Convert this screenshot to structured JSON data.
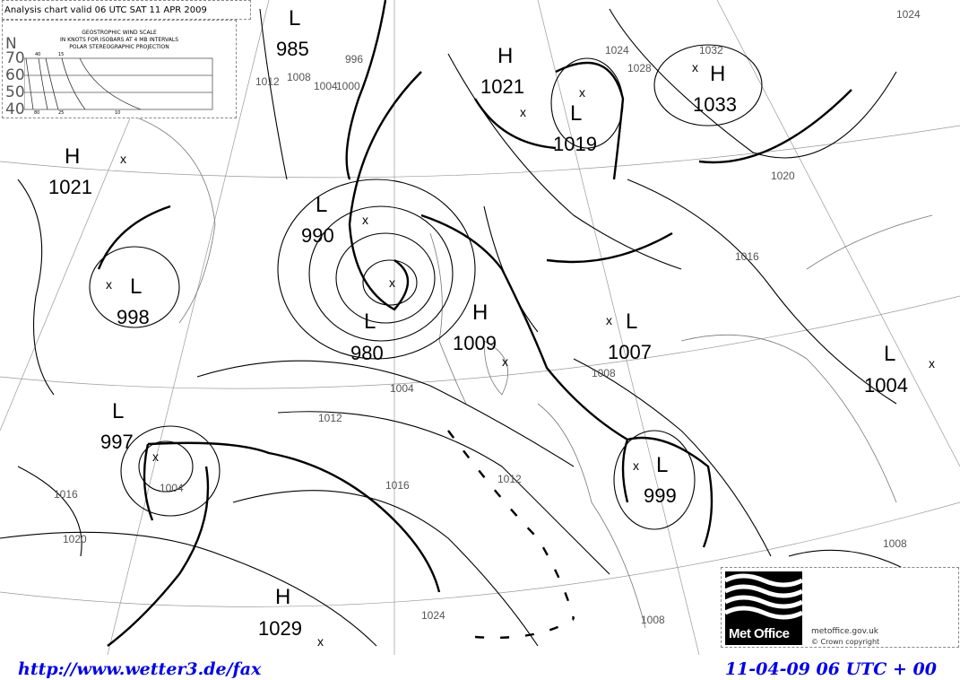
{
  "header": {
    "title": "Analysis chart valid 06 UTC SAT 11 APR 2009"
  },
  "wind_scale": {
    "title": "GEOSTROPHIC WIND SCALE",
    "subtitle": "IN KNOTS FOR ISOBARS AT  4 MB INTERVALS",
    "projection": "POLAR STEREOGRAPHIC PROJECTION",
    "north_label": "N",
    "latitudes": [
      "70",
      "60",
      "50",
      "40"
    ],
    "top_labels": [
      "40",
      "15"
    ],
    "bottom_labels": [
      "80",
      "25",
      "10"
    ]
  },
  "pressure_centres": [
    {
      "type": "L",
      "value": "985"
    },
    {
      "type": "H",
      "value": "1021"
    },
    {
      "type": "L",
      "value": "1019"
    },
    {
      "type": "H",
      "value": "1033"
    },
    {
      "type": "H",
      "value": "1021"
    },
    {
      "type": "L",
      "value": "990"
    },
    {
      "type": "L",
      "value": "998"
    },
    {
      "type": "L",
      "value": "980"
    },
    {
      "type": "H",
      "value": "1009"
    },
    {
      "type": "L",
      "value": "1007"
    },
    {
      "type": "L",
      "value": "1004"
    },
    {
      "type": "L",
      "value": "997"
    },
    {
      "type": "L",
      "value": "999"
    },
    {
      "type": "H",
      "value": "1029"
    }
  ],
  "isobar_labels": [
    "1024",
    "996",
    "1000",
    "1004",
    "1008",
    "1012",
    "1016",
    "1020",
    "1024",
    "1028",
    "1032",
    "1012",
    "1016",
    "1004",
    "1008",
    "1012",
    "1016",
    "1020",
    "1024",
    "1008",
    "1004",
    "1008"
  ],
  "logo": {
    "name": "Met Office",
    "site": "metoffice.gov.uk",
    "copyright": "© Crown copyright"
  },
  "footer": {
    "url": "http://www.wetter3.de/fax",
    "valid": "11-04-09 06 UTC + 00"
  }
}
